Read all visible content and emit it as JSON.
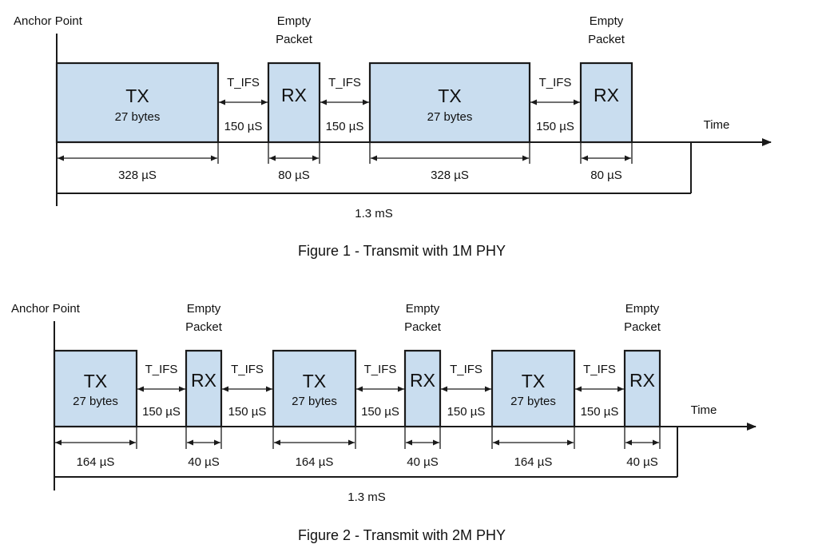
{
  "diagram1": {
    "anchor_label": "Anchor Point",
    "time_label": "Time",
    "packets": [
      {
        "kind": "TX",
        "label": "TX",
        "sub": "27 bytes",
        "duration": "328 µS"
      },
      {
        "kind": "RX",
        "label": "RX",
        "sub": "",
        "duration": "80 µS",
        "top_label_1": "Empty",
        "top_label_2": "Packet"
      },
      {
        "kind": "TX",
        "label": "TX",
        "sub": "27 bytes",
        "duration": "328 µS"
      },
      {
        "kind": "RX",
        "label": "RX",
        "sub": "",
        "duration": "80 µS",
        "top_label_1": "Empty",
        "top_label_2": "Packet"
      }
    ],
    "gap_top_label": "T_IFS",
    "gap_bottom_label": "150 µS",
    "total_label": "1.3 mS",
    "caption": "Figure 1 - Transmit with 1M PHY"
  },
  "diagram2": {
    "anchor_label": "Anchor Point",
    "time_label": "Time",
    "packets": [
      {
        "kind": "TX",
        "label": "TX",
        "sub": "27 bytes",
        "duration": "164 µS"
      },
      {
        "kind": "RX",
        "label": "RX",
        "sub": "",
        "duration": "40 µS",
        "top_label_1": "Empty",
        "top_label_2": "Packet"
      },
      {
        "kind": "TX",
        "label": "TX",
        "sub": "27 bytes",
        "duration": "164 µS"
      },
      {
        "kind": "RX",
        "label": "RX",
        "sub": "",
        "duration": "40 µS",
        "top_label_1": "Empty",
        "top_label_2": "Packet"
      },
      {
        "kind": "TX",
        "label": "TX",
        "sub": "27 bytes",
        "duration": "164 µS"
      },
      {
        "kind": "RX",
        "label": "RX",
        "sub": "",
        "duration": "40 µS",
        "top_label_1": "Empty",
        "top_label_2": "Packet"
      }
    ],
    "gap_top_label": "T_IFS",
    "gap_bottom_label": "150 µS",
    "total_label": "1.3 mS",
    "caption": "Figure 2 - Transmit with 2M PHY"
  }
}
